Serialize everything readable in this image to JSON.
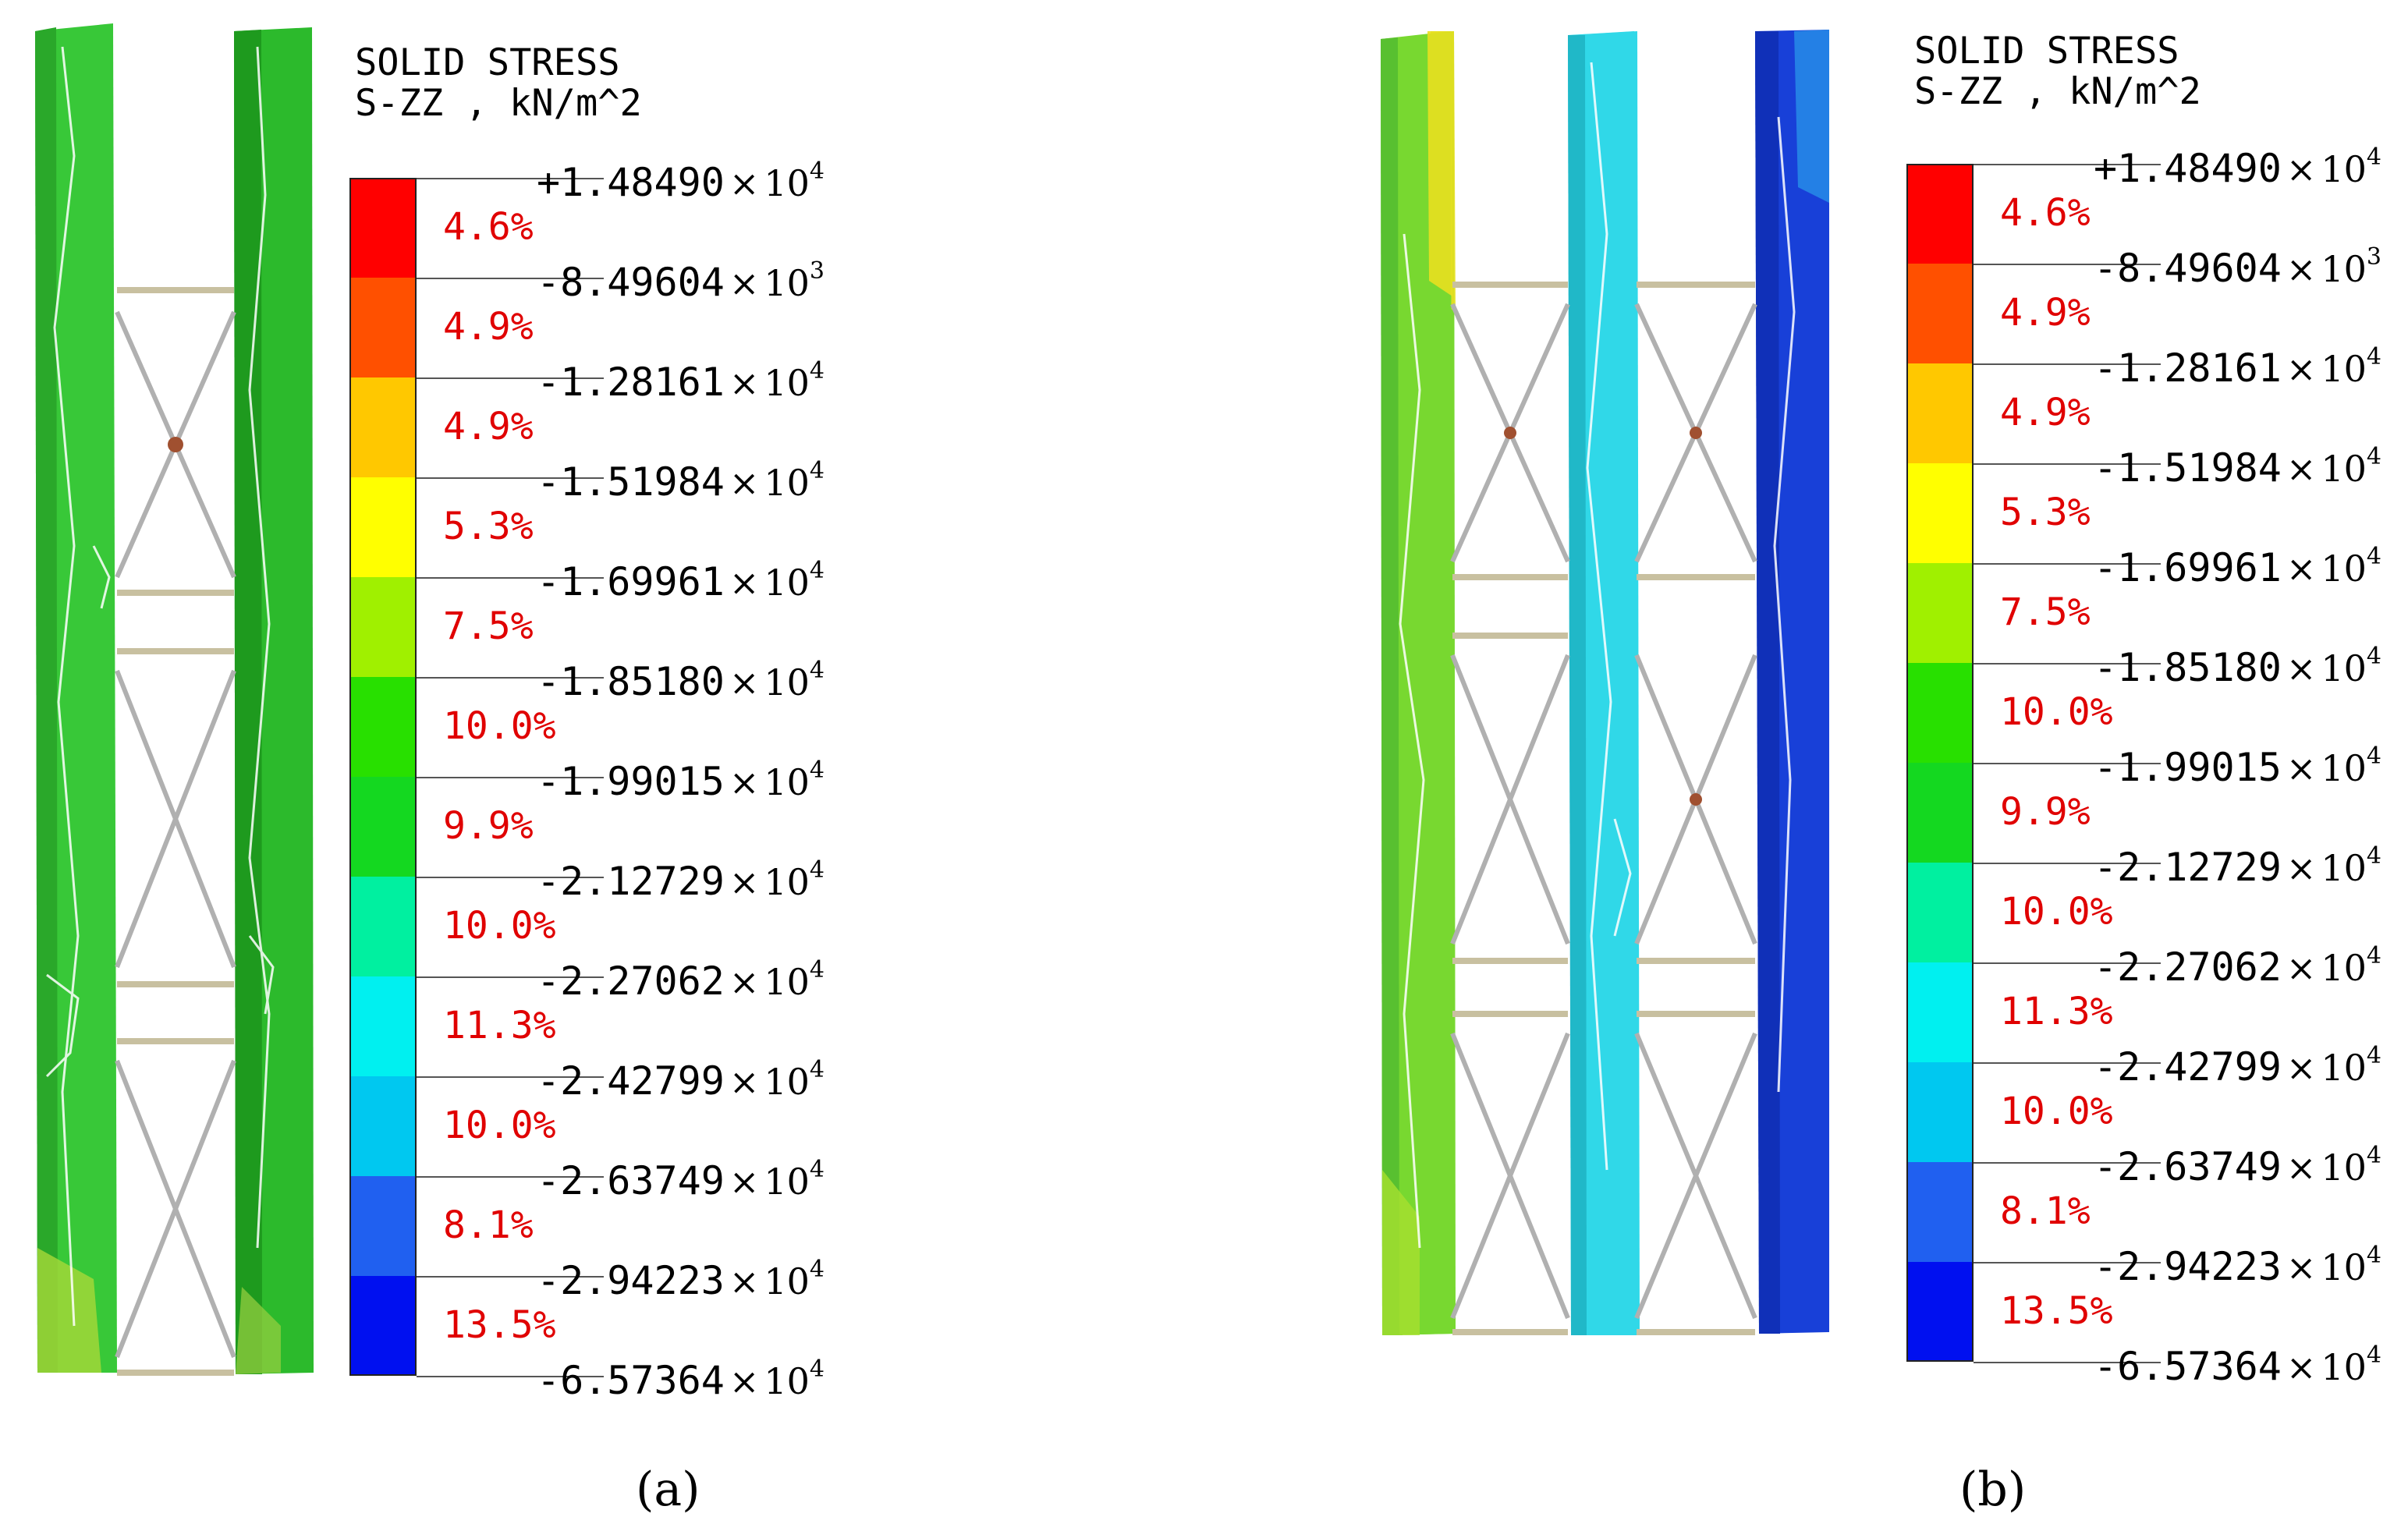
{
  "legend": {
    "title_line1": "SOLID STRESS",
    "title_line2": "S-ZZ , kN/m^2",
    "ticks": [
      {
        "sign": "+",
        "mantissa": "1.48490",
        "base": "10",
        "exp": "4"
      },
      {
        "sign": "-",
        "mantissa": "8.49604",
        "base": "10",
        "exp": "3"
      },
      {
        "sign": "-",
        "mantissa": "1.28161",
        "base": "10",
        "exp": "4"
      },
      {
        "sign": "-",
        "mantissa": "1.51984",
        "base": "10",
        "exp": "4"
      },
      {
        "sign": "-",
        "mantissa": "1.69961",
        "base": "10",
        "exp": "4"
      },
      {
        "sign": "-",
        "mantissa": "1.85180",
        "base": "10",
        "exp": "4"
      },
      {
        "sign": "-",
        "mantissa": "1.99015",
        "base": "10",
        "exp": "4"
      },
      {
        "sign": "-",
        "mantissa": "2.12729",
        "base": "10",
        "exp": "4"
      },
      {
        "sign": "-",
        "mantissa": "2.27062",
        "base": "10",
        "exp": "4"
      },
      {
        "sign": "-",
        "mantissa": "2.42799",
        "base": "10",
        "exp": "4"
      },
      {
        "sign": "-",
        "mantissa": "2.63749",
        "base": "10",
        "exp": "4"
      },
      {
        "sign": "-",
        "mantissa": "2.94223",
        "base": "10",
        "exp": "4"
      },
      {
        "sign": "-",
        "mantissa": "6.57364",
        "base": "10",
        "exp": "4"
      }
    ],
    "bands": [
      {
        "color": "#ff0000",
        "percent": "4.6%"
      },
      {
        "color": "#ff5000",
        "percent": "4.9%"
      },
      {
        "color": "#ffc800",
        "percent": "4.9%"
      },
      {
        "color": "#ffff00",
        "percent": "5.3%"
      },
      {
        "color": "#a0f000",
        "percent": "7.5%"
      },
      {
        "color": "#28e000",
        "percent": "10.0%"
      },
      {
        "color": "#14d820",
        "percent": "9.9%"
      },
      {
        "color": "#00f0a0",
        "percent": "10.0%"
      },
      {
        "color": "#00f0f0",
        "percent": "11.3%"
      },
      {
        "color": "#00c8f0",
        "percent": "10.0%"
      },
      {
        "color": "#2060f0",
        "percent": "8.1%"
      },
      {
        "color": "#0010f0",
        "percent": "13.5%"
      }
    ]
  },
  "panels": [
    {
      "caption": "(a)"
    },
    {
      "caption": "(b)"
    }
  ]
}
